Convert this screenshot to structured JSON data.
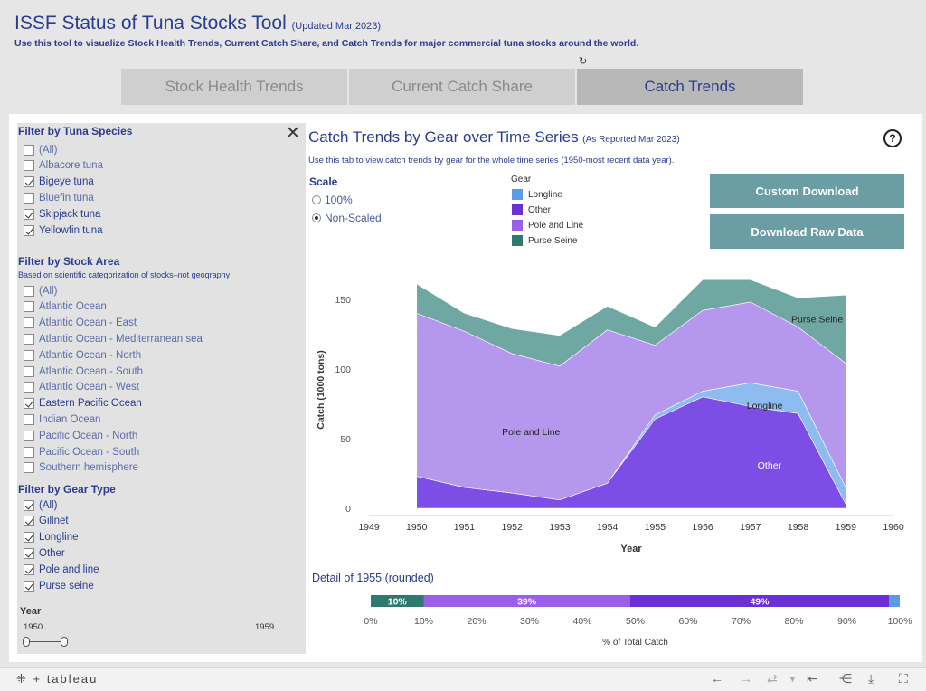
{
  "header": {
    "title": "ISSF Status of Tuna Stocks Tool",
    "title_note": "(Updated Mar 2023)",
    "subtitle": "Use this tool to visualize Stock Health Trends, Current Catch Share, and Catch Trends for major commercial tuna stocks around the world."
  },
  "tabs": [
    {
      "label": "Stock Health Trends",
      "active": false
    },
    {
      "label": "Current Catch Share",
      "active": false
    },
    {
      "label": "Catch Trends",
      "active": true
    }
  ],
  "sidebar": {
    "species_title": "Filter by Tuna Species",
    "species": [
      {
        "label": "(All)",
        "checked": false
      },
      {
        "label": "Albacore tuna",
        "checked": false
      },
      {
        "label": "Bigeye tuna",
        "checked": true
      },
      {
        "label": "Bluefin tuna",
        "checked": false
      },
      {
        "label": "Skipjack tuna",
        "checked": true
      },
      {
        "label": "Yellowfin tuna",
        "checked": true
      }
    ],
    "area_title": "Filter by Stock Area",
    "area_note": "Based on scientific categorization of stocks–not geography",
    "areas": [
      {
        "label": "(All)",
        "checked": false
      },
      {
        "label": "Atlantic Ocean",
        "checked": false
      },
      {
        "label": "Atlantic Ocean - East",
        "checked": false
      },
      {
        "label": "Atlantic Ocean - Mediterranean sea",
        "checked": false
      },
      {
        "label": "Atlantic Ocean - North",
        "checked": false
      },
      {
        "label": "Atlantic Ocean - South",
        "checked": false
      },
      {
        "label": "Atlantic Ocean - West",
        "checked": false
      },
      {
        "label": "Eastern Pacific Ocean",
        "checked": true
      },
      {
        "label": "Indian Ocean",
        "checked": false
      },
      {
        "label": "Pacific Ocean - North",
        "checked": false
      },
      {
        "label": "Pacific Ocean - South",
        "checked": false
      },
      {
        "label": "Southern hemisphere",
        "checked": false
      }
    ],
    "gear_title": "Filter by Gear Type",
    "gears": [
      {
        "label": "(All)",
        "checked": true
      },
      {
        "label": "Gillnet",
        "checked": true
      },
      {
        "label": "Longline",
        "checked": true
      },
      {
        "label": "Other",
        "checked": true
      },
      {
        "label": "Pole and line",
        "checked": true
      },
      {
        "label": "Purse seine",
        "checked": true
      }
    ],
    "year_title": "Year",
    "year_min": "1950",
    "year_max": "1959"
  },
  "main": {
    "title": "Catch Trends by Gear over Time Series",
    "title_note": "(As Reported Mar 2023)",
    "description": "Use this tab to view catch trends by gear for the whole time series (1950-most recent data year).",
    "scale_title": "Scale",
    "scale_options": [
      {
        "label": "100%",
        "selected": false
      },
      {
        "label": "Non-Scaled",
        "selected": true
      }
    ],
    "legend_title": "Gear",
    "legend": [
      {
        "label": "Longline",
        "color": "#5a9be8"
      },
      {
        "label": "Other",
        "color": "#6a2fd8"
      },
      {
        "label": "Pole and Line",
        "color": "#9a5ee8"
      },
      {
        "label": "Purse Seine",
        "color": "#2f7a70"
      }
    ],
    "buttons": {
      "custom_download": "Custom Download",
      "download_raw": "Download Raw Data"
    }
  },
  "chart_data": [
    {
      "type": "area",
      "stacked": true,
      "x": [
        1950,
        1951,
        1952,
        1953,
        1954,
        1955,
        1956,
        1957,
        1958,
        1959
      ],
      "series": [
        {
          "name": "Other",
          "color": "#7d4ee6",
          "values": [
            23,
            15,
            11,
            6,
            18,
            64,
            80,
            73,
            68,
            3
          ]
        },
        {
          "name": "Longline",
          "color": "#8fbcf0",
          "values": [
            0,
            0,
            0,
            0,
            0,
            3,
            4,
            17,
            16,
            12
          ]
        },
        {
          "name": "Pole and Line",
          "color": "#b697ee",
          "values": [
            117,
            112,
            100,
            96,
            110,
            50,
            58,
            58,
            46,
            89
          ]
        },
        {
          "name": "Purse Seine",
          "color": "#6fa8a3",
          "values": [
            21,
            13,
            18,
            22,
            17,
            13,
            22,
            16,
            21,
            49
          ]
        }
      ],
      "area_labels": [
        {
          "text": "Pole and Line",
          "x": 1952.4,
          "y": 55
        },
        {
          "text": "Other",
          "x": 1957.4,
          "y": 31
        },
        {
          "text": "Longline",
          "x": 1957.3,
          "y": 74
        },
        {
          "text": "Purse Seine",
          "x": 1958.4,
          "y": 136
        }
      ],
      "xlabel": "Year",
      "ylabel": "Catch (1000 tons)",
      "xlim": [
        1949,
        1960
      ],
      "ylim": [
        0,
        170
      ],
      "xticks": [
        1949,
        1950,
        1951,
        1952,
        1953,
        1954,
        1955,
        1956,
        1957,
        1958,
        1959,
        1960
      ],
      "yticks": [
        0,
        50,
        100,
        150
      ],
      "grid": false
    },
    {
      "type": "bar",
      "orientation": "horizontal",
      "stacked": true,
      "title": "Detail of 1955 (rounded)",
      "segments": [
        {
          "name": "Purse Seine",
          "value": 10,
          "label": "10%",
          "color": "#2f7a70"
        },
        {
          "name": "Pole and Line",
          "value": 39,
          "label": "39%",
          "color": "#9a5ee8"
        },
        {
          "name": "Other",
          "value": 49,
          "label": "49%",
          "color": "#6a2fd8"
        },
        {
          "name": "Longline",
          "value": 2,
          "label": "",
          "color": "#5a9be8"
        }
      ],
      "xlabel": "% of Total Catch",
      "xlim": [
        0,
        100
      ],
      "xticks": [
        "0%",
        "10%",
        "20%",
        "30%",
        "40%",
        "50%",
        "60%",
        "70%",
        "80%",
        "90%",
        "100%"
      ]
    }
  ],
  "footer": {
    "logo": "tableau"
  }
}
